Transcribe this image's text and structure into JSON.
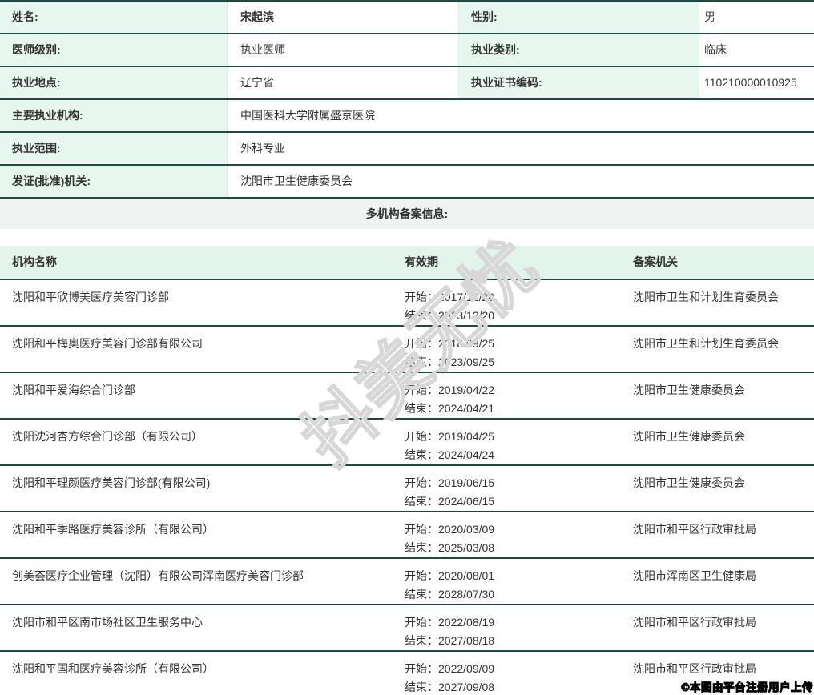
{
  "info": {
    "rows": [
      {
        "label1": "姓名:",
        "value1": "宋起滨",
        "bold": true,
        "label2": "性别:",
        "value2": "男"
      },
      {
        "label1": "医师级别:",
        "value1": "执业医师",
        "label2": "执业类别:",
        "value2": "临床"
      },
      {
        "label1": "执业地点:",
        "value1": "辽宁省",
        "label2": "执业证书编码:",
        "value2": "110210000010925"
      },
      {
        "label1": "主要执业机构:",
        "value1": "中国医科大学附属盛京医院"
      },
      {
        "label1": "执业范围:",
        "value1": "外科专业"
      },
      {
        "label1": "发证(批准)机关:",
        "value1": "沈阳市卫生健康委员会"
      }
    ]
  },
  "section": {
    "title": "多机构备案信息:"
  },
  "filing": {
    "headers": [
      "机构名称",
      "有效期",
      "备案机关"
    ],
    "start_label": "开始：",
    "end_label": "结束：",
    "rows": [
      {
        "name": "沈阳和平欣博美医疗美容门诊部",
        "start": "2017/12/20",
        "end": "2023/12/20",
        "authority": "沈阳市卫生和计划生育委员会"
      },
      {
        "name": "沈阳和平梅奥医疗美容门诊部有限公司",
        "start": "2018/09/25",
        "end": "2023/09/25",
        "authority": "沈阳市卫生和计划生育委员会"
      },
      {
        "name": "沈阳和平爱海综合门诊部",
        "start": "2019/04/22",
        "end": "2024/04/21",
        "authority": "沈阳市卫生健康委员会"
      },
      {
        "name": "沈阳沈河杏方综合门诊部（有限公司）",
        "start": "2019/04/25",
        "end": "2024/04/24",
        "authority": "沈阳市卫生健康委员会"
      },
      {
        "name": "沈阳和平理颜医疗美容门诊部(有限公司)",
        "start": "2019/06/15",
        "end": "2024/06/15",
        "authority": "沈阳市卫生健康委员会"
      },
      {
        "name": "沈阳和平季路医疗美容诊所（有限公司）",
        "start": "2020/03/09",
        "end": "2025/03/08",
        "authority": "沈阳市和平区行政审批局"
      },
      {
        "name": "创美荟医疗企业管理（沈阳）有限公司浑南医疗美容门诊部",
        "start": "2020/08/01",
        "end": "2028/07/30",
        "authority": "沈阳市浑南区卫生健康局"
      },
      {
        "name": "沈阳市和平区南市场社区卫生服务中心",
        "start": "2022/08/19",
        "end": "2027/08/18",
        "authority": "沈阳市和平区行政审批局"
      },
      {
        "name": "沈阳和平国和医疗美容诊所（有限公司）",
        "start": "2022/09/09",
        "end": "2027/09/08",
        "authority": "沈阳市和平区行政审批局"
      }
    ]
  },
  "watermark": {
    "text": "抖美无忧"
  },
  "footer": {
    "copyright": "©本图由平台注册用户上传"
  },
  "colors": {
    "label_mint": "#e7f7f0",
    "header_mint": "#e2f4eb",
    "border_dark": "#1d4b41",
    "band_gray": "#f1f2f2",
    "text": "#333333",
    "watermark_gray": "#d7d7d7"
  }
}
